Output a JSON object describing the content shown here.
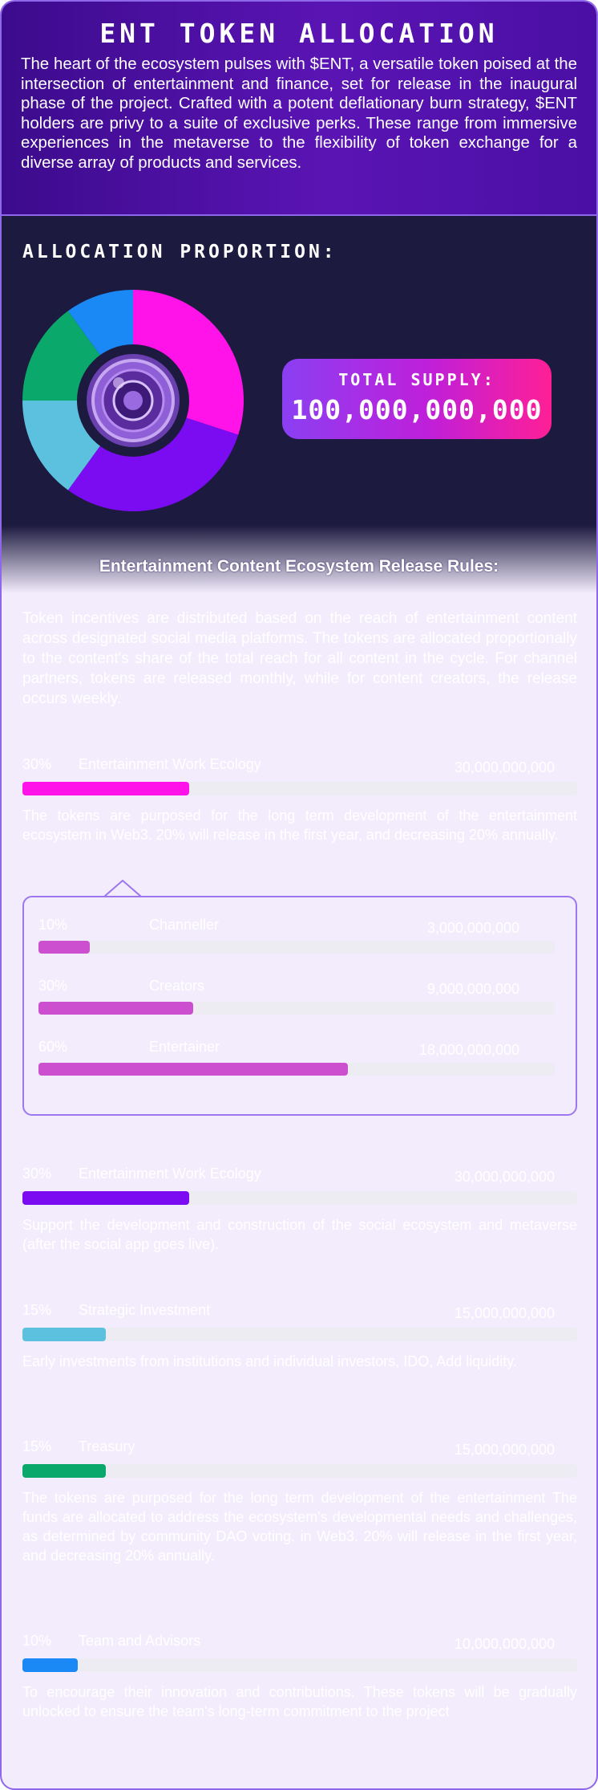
{
  "header": {
    "title": "ENT TOKEN ALLOCATION",
    "intro": "The heart of the ecosystem pulses with $ENT, a versatile token poised at the intersection of entertainment and finance, set for release in the inaugural phase of the project. Crafted with a potent deflationary burn strategy, $ENT holders are privy to a suite of exclusive perks. These range from immersive experiences in the metaverse to the flexibility of token exchange for a diverse array of products and services."
  },
  "allocation": {
    "heading": "ALLOCATION PROPORTION:",
    "total_supply_label": "TOTAL SUPPLY:",
    "total_supply_value": "100,000,000,000",
    "center_image": "ent-coin-logo"
  },
  "chart_data": {
    "type": "pie",
    "slices": [
      {
        "label": "Entertainment Work Ecology",
        "value": 30,
        "color": "#ff13e8"
      },
      {
        "label": "Entertainment Work Ecology",
        "value": 30,
        "color": "#7b0cf2"
      },
      {
        "label": "Strategic Investment",
        "value": 15,
        "color": "#5bc1de"
      },
      {
        "label": "Treasury",
        "value": 15,
        "color": "#0aa86a"
      },
      {
        "label": "Team and Advisors",
        "value": 10,
        "color": "#1a88f5"
      }
    ],
    "donut": true
  },
  "rules": {
    "title": "Entertainment Content Ecosystem Release Rules:",
    "text": "Token incentives are distributed based on the reach of entertainment content across designated social media platforms. The tokens are allocated proportionally to the content's share of the total reach for all content in the cycle. For channel partners, tokens are released monthly, while for content creators, the release occurs weekly."
  },
  "rows": [
    {
      "percent": "30%",
      "name": "Entertainment Work Ecology",
      "amount": "30,000,000,000",
      "fill": 0.3,
      "color": "#ff13e8",
      "desc": "The tokens are purposed for the long term development of the entertainment ecosystem in Web3. 20% will release in the first year, and decreasing 20% annually."
    },
    {
      "percent": "30%",
      "name": "Entertainment Work Ecology",
      "amount": "30,000,000,000",
      "fill": 0.3,
      "color": "#7b0cf2",
      "desc": "Support the development and construction of the social ecosystem and metaverse (after the social app goes live)."
    },
    {
      "percent": "15%",
      "name": "Strategic Investment",
      "amount": "15,000,000,000",
      "fill": 0.15,
      "color": "#5bc1de",
      "desc": "Early investments from institutions and individual investors, IDO, Add liquidity."
    },
    {
      "percent": "15%",
      "name": "Treasury",
      "amount": "15,000,000,000",
      "fill": 0.15,
      "color": "#0aa86a",
      "desc": "The tokens are purposed for the long term development of the entertainment The funds are allocated to address the ecosystem's developmental needs and challenges, as determined by community DAO voting. in Web3. 20% will release in the first year, and decreasing 20% annually."
    },
    {
      "percent": "10%",
      "name": "Team and Advisors",
      "amount": "10,000,000,000",
      "fill": 0.1,
      "color": "#1a88f5",
      "desc": "To encourage their innovation and contributions. These tokens will be gradually unlocked to ensure the team's long-term commitment to the project"
    }
  ],
  "sub_rows": [
    {
      "percent": "10%",
      "name": "Channeller",
      "amount": "3,000,000,000",
      "fill": 0.1
    },
    {
      "percent": "30%",
      "name": "Creators",
      "amount": "9,000,000,000",
      "fill": 0.3
    },
    {
      "percent": "60%",
      "name": "Entertainer",
      "amount": "18,000,000,000",
      "fill": 0.6
    }
  ]
}
